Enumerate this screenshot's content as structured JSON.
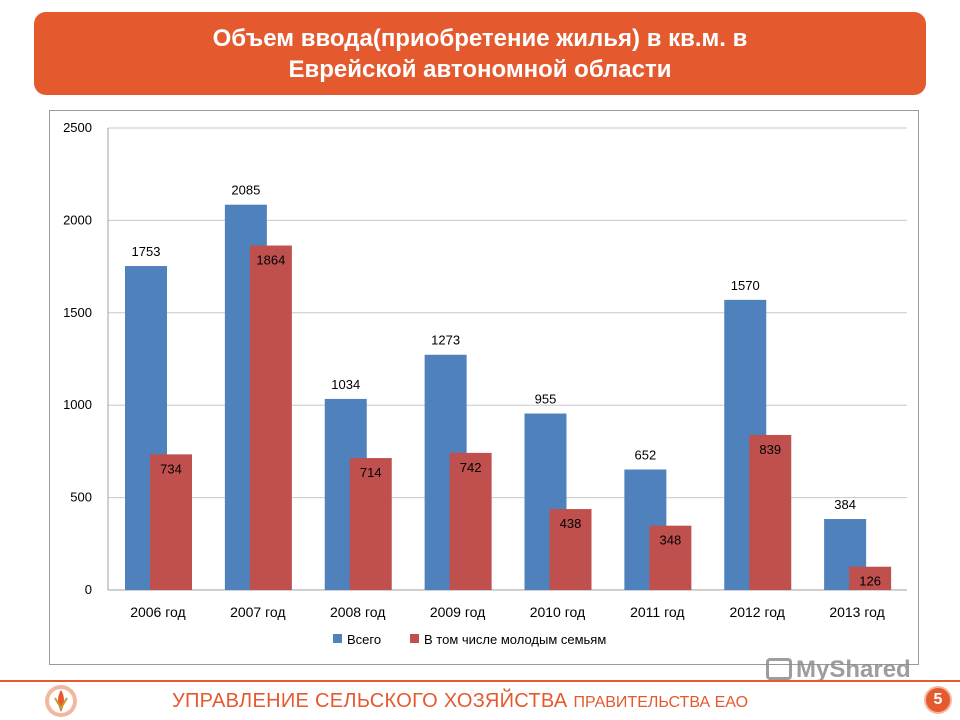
{
  "title": {
    "line1": "Объем ввода(приобретение жилья) в кв.м. в",
    "line2": "Еврейской автономной области"
  },
  "footer": {
    "main": "УПРАВЛЕНИЕ СЕЛЬСКОГО ХОЗЯЙСТВА",
    "sub": "ПРАВИТЕЛЬСТВА ЕАО",
    "page_number": "5"
  },
  "watermark": "MyShared",
  "colors": {
    "banner": "#e5592f",
    "series_total": "#4f81bd",
    "series_young": "#c0504d",
    "grid": "#c8c8c8"
  },
  "chart_data": {
    "type": "bar",
    "categories": [
      "2006  год",
      "2007 год",
      "2008 год",
      "2009 год",
      "2010 год",
      "2011 год",
      "2012 год",
      "2013 год"
    ],
    "series": [
      {
        "name": "Всего",
        "values": [
          1753,
          2085,
          1034,
          1273,
          955,
          652,
          1570,
          384
        ]
      },
      {
        "name": "В том числе молодым семьям",
        "values": [
          734,
          1864,
          714,
          742,
          438,
          348,
          839,
          126
        ]
      }
    ],
    "yticks": [
      "0",
      "500",
      "1000",
      "1500",
      "2000",
      "2500"
    ],
    "ylim": [
      0,
      2500
    ],
    "grid": true,
    "legend_position": "bottom"
  }
}
